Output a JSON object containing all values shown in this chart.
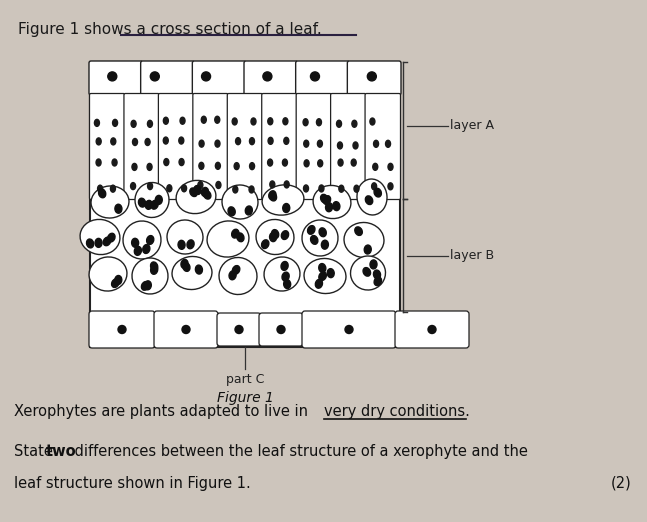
{
  "bg_color": "#cdc5bc",
  "title_text": "Figure 1 shows a cross section of a leaf.",
  "figure1_label": "Figure 1",
  "partC_label": "part C",
  "layerA_label": "layer A",
  "layerB_label": "layer B",
  "text_xerophytes": "Xerophytes are plants adapted to live in ",
  "text_underlined": "very dry conditions.",
  "text_state": "State ",
  "text_two": "two",
  "text_differences": " differences between the leaf structure of a xerophyte and the",
  "text_leaf": "leaf structure shown in Figure 1.",
  "mark": "(2)"
}
